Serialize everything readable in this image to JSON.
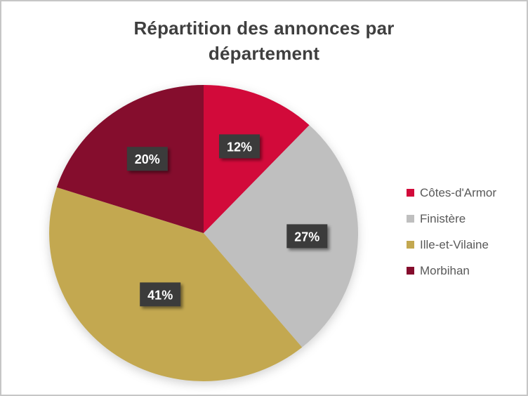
{
  "frame": {
    "background": "#ffffff",
    "border_color": "#c6c6c6"
  },
  "chart_data": {
    "type": "pie",
    "title": "Répartition des annonces par département",
    "slices": [
      {
        "label": "Côtes-d'Armor",
        "value": 12,
        "display": "12%",
        "color": "#d20a3a"
      },
      {
        "label": "Finistère",
        "value": 27,
        "display": "27%",
        "color": "#bfbfbf"
      },
      {
        "label": "Ille-et-Vilaine",
        "value": 41,
        "display": "41%",
        "color": "#c3a850"
      },
      {
        "label": "Morbihan",
        "value": 20,
        "display": "20%",
        "color": "#850d2d"
      }
    ],
    "layout": {
      "start_angle_deg": 0,
      "direction": "clockwise",
      "legend_position": "right",
      "grid": false,
      "label_radius_fractions": [
        0.63,
        0.67,
        0.5,
        0.62
      ],
      "label_style": {
        "background": "#3b3b3b",
        "text_color": "#ffffff"
      },
      "title_color": "#3f3f3f",
      "legend_text_color": "#595959"
    }
  }
}
